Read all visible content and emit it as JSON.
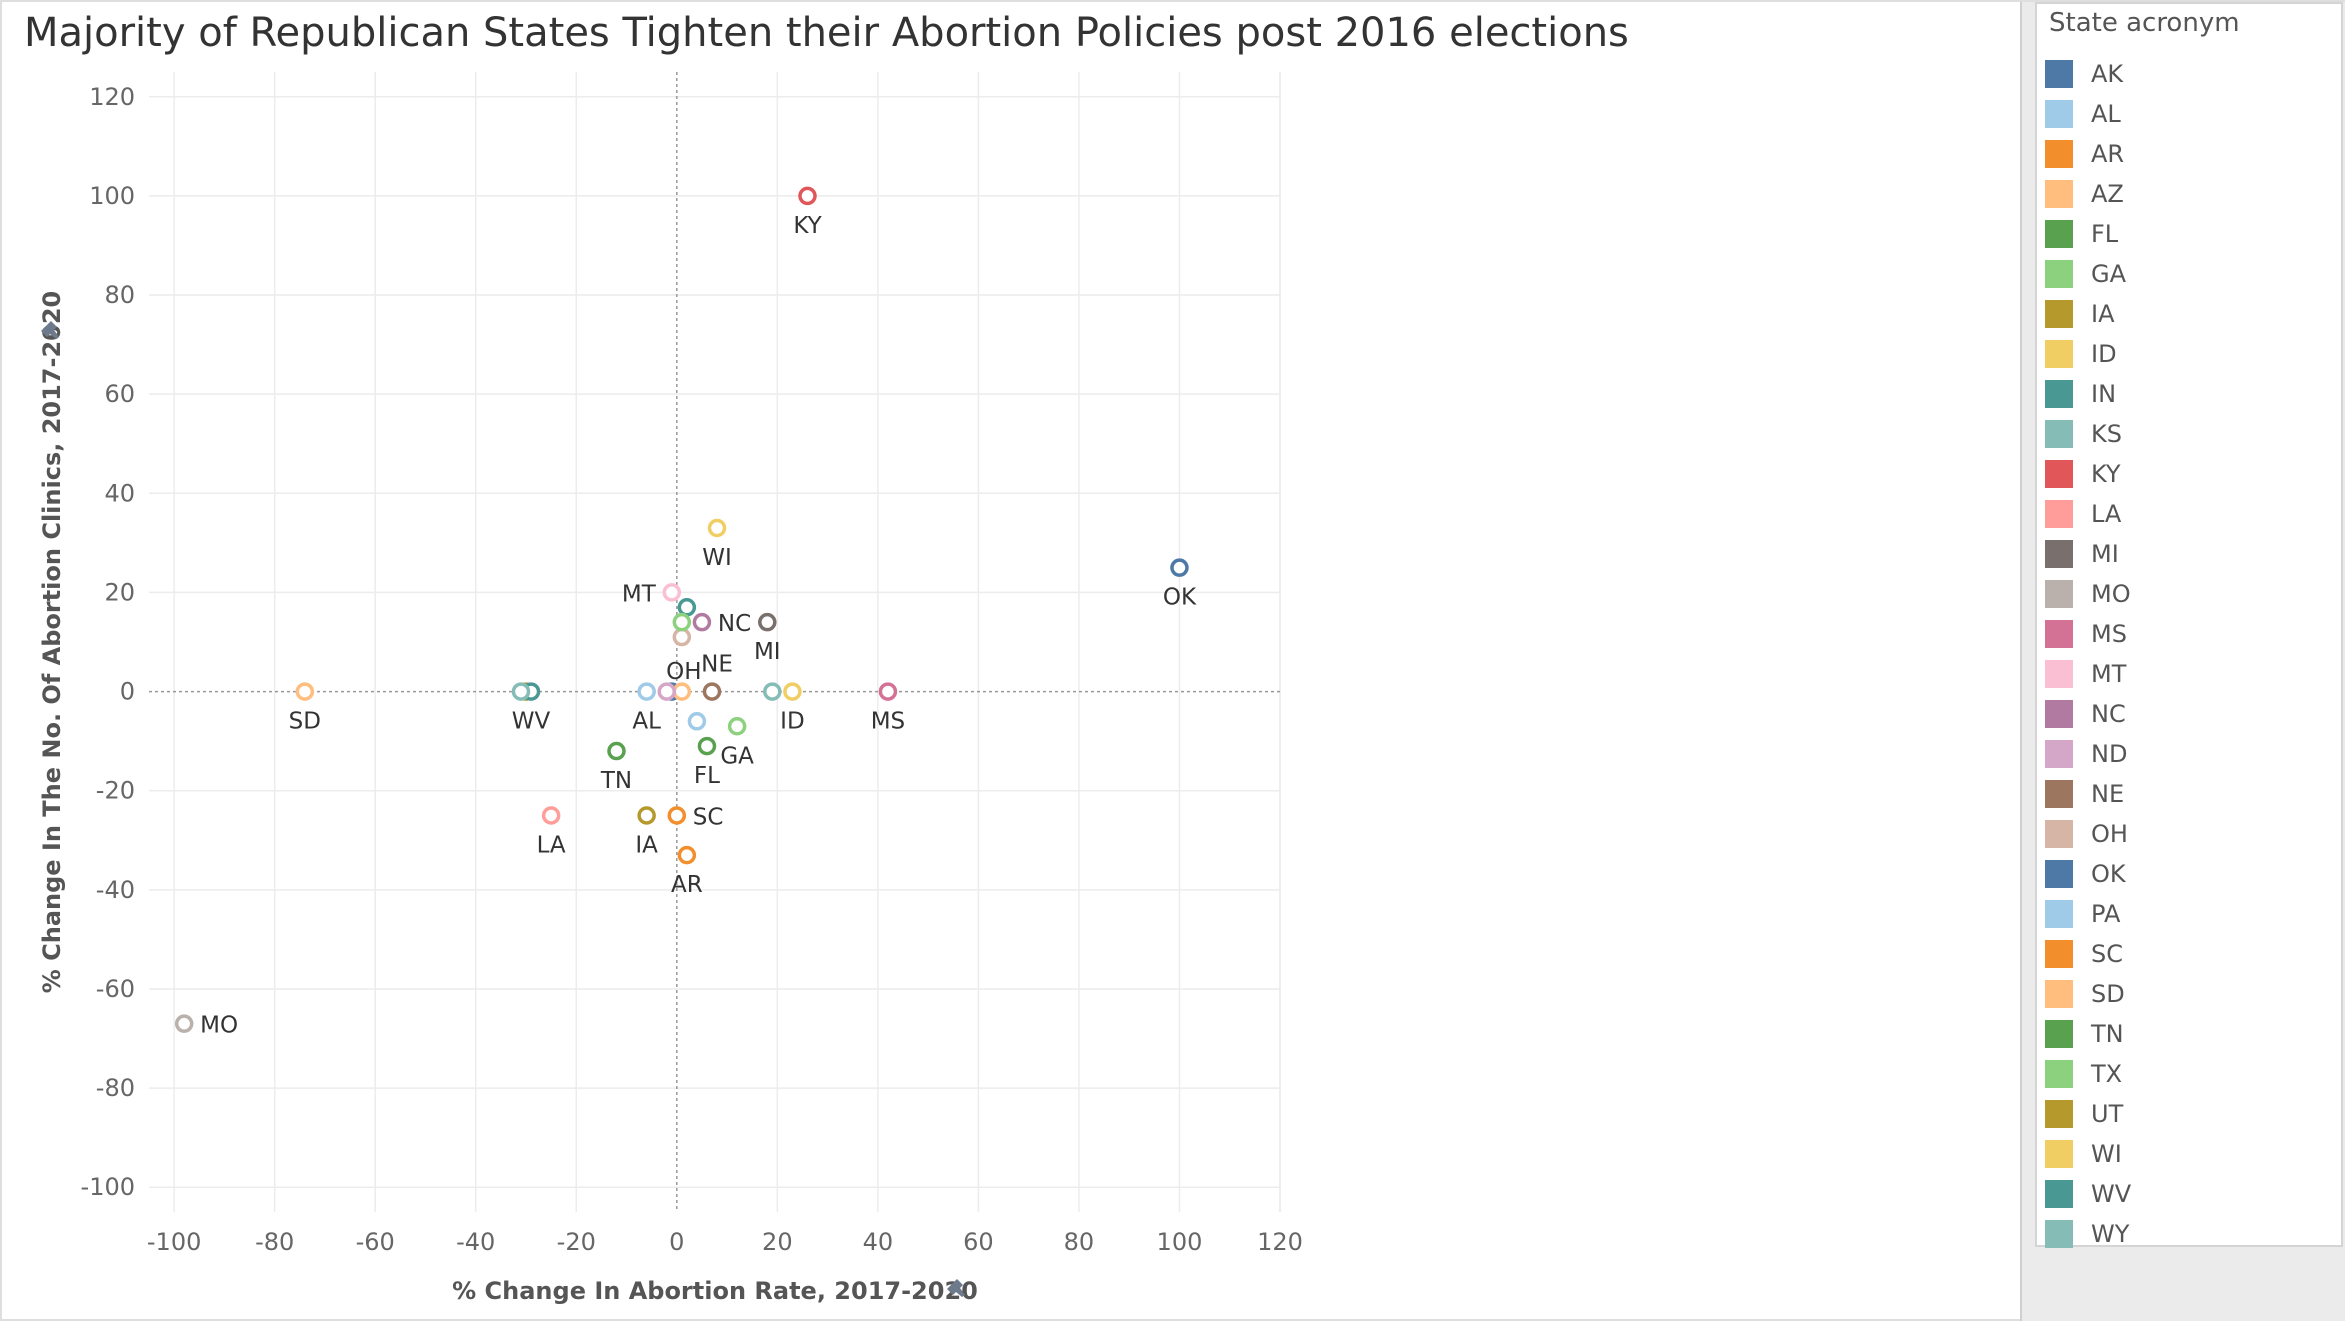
{
  "chart_data": {
    "type": "scatter",
    "title": "Majority of Republican States Tighten their Abortion Policies post 2016 elections",
    "xlabel": "% Change In Abortion Rate, 2017-2020",
    "ylabel": "% Change In The No. Of Abortion Clinics, 2017-2020",
    "xlim": [
      -105,
      120
    ],
    "ylim": [
      -105,
      125
    ],
    "x_ticks": [
      -100,
      -80,
      -60,
      -40,
      -20,
      0,
      20,
      40,
      60,
      80,
      100,
      120
    ],
    "y_ticks": [
      -100,
      -80,
      -60,
      -40,
      -20,
      0,
      20,
      40,
      60,
      80,
      100,
      120
    ],
    "grid": true,
    "legend_title": "State acronym",
    "legend_position": "right",
    "points": [
      {
        "state": "AK",
        "x": -1,
        "y": 0,
        "label": ""
      },
      {
        "state": "AL",
        "x": -6,
        "y": 0,
        "label": "AL"
      },
      {
        "state": "AR",
        "x": 2,
        "y": -33,
        "label": "AR"
      },
      {
        "state": "AZ",
        "x": 1,
        "y": 0,
        "label": ""
      },
      {
        "state": "FL",
        "x": 6,
        "y": -11,
        "label": "FL"
      },
      {
        "state": "GA",
        "x": 12,
        "y": -7,
        "label": "GA"
      },
      {
        "state": "IA",
        "x": -6,
        "y": -25,
        "label": "IA"
      },
      {
        "state": "ID",
        "x": 23,
        "y": 0,
        "label": "ID"
      },
      {
        "state": "IN",
        "x": 2,
        "y": 17,
        "label": ""
      },
      {
        "state": "KS",
        "x": 19,
        "y": 0,
        "label": ""
      },
      {
        "state": "KY",
        "x": 26,
        "y": 100,
        "label": "KY"
      },
      {
        "state": "LA",
        "x": -25,
        "y": -25,
        "label": "LA"
      },
      {
        "state": "MI",
        "x": 18,
        "y": 14,
        "label": "MI"
      },
      {
        "state": "MO",
        "x": -98,
        "y": -67,
        "label": "MO"
      },
      {
        "state": "MS",
        "x": 42,
        "y": 0,
        "label": "MS"
      },
      {
        "state": "MT",
        "x": -1,
        "y": 20,
        "label": "MT"
      },
      {
        "state": "NC",
        "x": 5,
        "y": 14,
        "label": "NC"
      },
      {
        "state": "ND",
        "x": -2,
        "y": 0,
        "label": ""
      },
      {
        "state": "NE",
        "x": 7,
        "y": 0,
        "label": "NE"
      },
      {
        "state": "OH",
        "x": 1,
        "y": 11,
        "label": "OH"
      },
      {
        "state": "OK",
        "x": 100,
        "y": 25,
        "label": "OK"
      },
      {
        "state": "PA",
        "x": 4,
        "y": -6,
        "label": ""
      },
      {
        "state": "SC",
        "x": 0,
        "y": -25,
        "label": "SC"
      },
      {
        "state": "SD",
        "x": -74,
        "y": 0,
        "label": "SD"
      },
      {
        "state": "TN",
        "x": -12,
        "y": -12,
        "label": "TN"
      },
      {
        "state": "TX",
        "x": 1,
        "y": 14,
        "label": ""
      },
      {
        "state": "UT",
        "x": -30,
        "y": 0,
        "label": ""
      },
      {
        "state": "WI",
        "x": 8,
        "y": 33,
        "label": "WI"
      },
      {
        "state": "WV",
        "x": -29,
        "y": 0,
        "label": "WV"
      },
      {
        "state": "WY",
        "x": -31,
        "y": 0,
        "label": ""
      }
    ],
    "legend": [
      {
        "state": "AK",
        "color": "#4e79a7"
      },
      {
        "state": "AL",
        "color": "#a0cbe8"
      },
      {
        "state": "AR",
        "color": "#f28e2b"
      },
      {
        "state": "AZ",
        "color": "#ffbe7d"
      },
      {
        "state": "FL",
        "color": "#59a14f"
      },
      {
        "state": "GA",
        "color": "#8cd17d"
      },
      {
        "state": "IA",
        "color": "#b6992d"
      },
      {
        "state": "ID",
        "color": "#f1ce63"
      },
      {
        "state": "IN",
        "color": "#499894"
      },
      {
        "state": "KS",
        "color": "#86bcb6"
      },
      {
        "state": "KY",
        "color": "#e15759"
      },
      {
        "state": "LA",
        "color": "#ff9d9a"
      },
      {
        "state": "MI",
        "color": "#79706e"
      },
      {
        "state": "MO",
        "color": "#bab0ac"
      },
      {
        "state": "MS",
        "color": "#d37295"
      },
      {
        "state": "MT",
        "color": "#fabfd2"
      },
      {
        "state": "NC",
        "color": "#b07aa1"
      },
      {
        "state": "ND",
        "color": "#d4a6c8"
      },
      {
        "state": "NE",
        "color": "#9d7660"
      },
      {
        "state": "OH",
        "color": "#d7b5a6"
      },
      {
        "state": "OK",
        "color": "#4e79a7"
      },
      {
        "state": "PA",
        "color": "#a0cbe8"
      },
      {
        "state": "SC",
        "color": "#f28e2b"
      },
      {
        "state": "SD",
        "color": "#ffbe7d"
      },
      {
        "state": "TN",
        "color": "#59a14f"
      },
      {
        "state": "TX",
        "color": "#8cd17d"
      },
      {
        "state": "UT",
        "color": "#b6992d"
      },
      {
        "state": "WI",
        "color": "#f1ce63"
      },
      {
        "state": "WV",
        "color": "#499894"
      },
      {
        "state": "WY",
        "color": "#86bcb6"
      }
    ]
  }
}
